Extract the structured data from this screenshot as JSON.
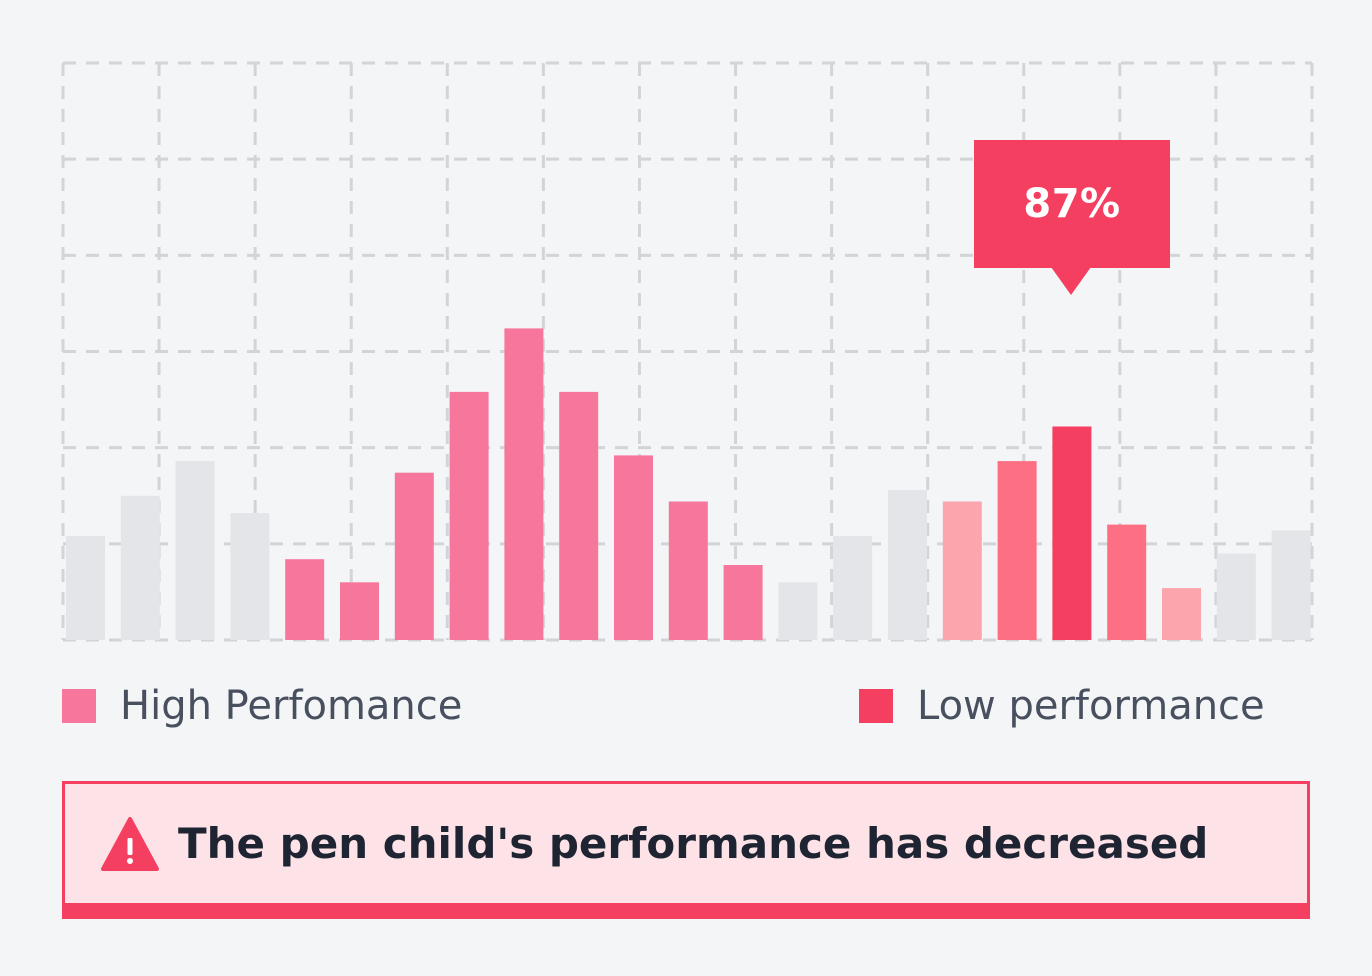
{
  "chart_data": {
    "type": "bar",
    "ylim": [
      0,
      100
    ],
    "grid": true,
    "legend_placement": "bottom",
    "series": [
      {
        "name": "High Perfomance",
        "values": [
          14,
          10,
          29,
          43,
          54,
          43,
          32,
          24,
          13
        ],
        "color": "#f7769b"
      },
      {
        "name": "Low performance",
        "values": [
          24,
          31,
          37,
          20,
          9
        ],
        "color": "#f43f60",
        "shade_colors": [
          "#fca5ad",
          "#fd6f83",
          "#f43f60",
          "#fd6f83",
          "#fca5ad"
        ]
      },
      {
        "name": "",
        "values": [
          18,
          25,
          31,
          22,
          10,
          18,
          26,
          15,
          19
        ],
        "color": "#e4e5e8"
      }
    ],
    "bar_sequence": [
      {
        "series": 2,
        "index": 0
      },
      {
        "series": 2,
        "index": 1
      },
      {
        "series": 2,
        "index": 2
      },
      {
        "series": 2,
        "index": 3
      },
      {
        "series": 0,
        "index": 0
      },
      {
        "series": 0,
        "index": 1
      },
      {
        "series": 0,
        "index": 2
      },
      {
        "series": 0,
        "index": 3
      },
      {
        "series": 0,
        "index": 4
      },
      {
        "series": 0,
        "index": 5
      },
      {
        "series": 0,
        "index": 6
      },
      {
        "series": 0,
        "index": 7
      },
      {
        "series": 0,
        "index": 8
      },
      {
        "series": 2,
        "index": 4
      },
      {
        "series": 2,
        "index": 5
      },
      {
        "series": 2,
        "index": 6
      },
      {
        "series": 1,
        "index": 0
      },
      {
        "series": 1,
        "index": 1
      },
      {
        "series": 1,
        "index": 2
      },
      {
        "series": 1,
        "index": 3
      },
      {
        "series": 1,
        "index": 4
      },
      {
        "series": 2,
        "index": 7
      },
      {
        "series": 2,
        "index": 8
      }
    ],
    "annotation": {
      "text": "87%",
      "series": 1,
      "index": 2
    }
  },
  "legend": {
    "items": [
      {
        "label": "High Perfomance",
        "color": "#f7769b"
      },
      {
        "label": "Low performance",
        "color": "#f43f60"
      }
    ]
  },
  "alert": {
    "text": "The pen child's performance has decreased",
    "icon": "warning-triangle-icon",
    "color": "#f43f60"
  }
}
